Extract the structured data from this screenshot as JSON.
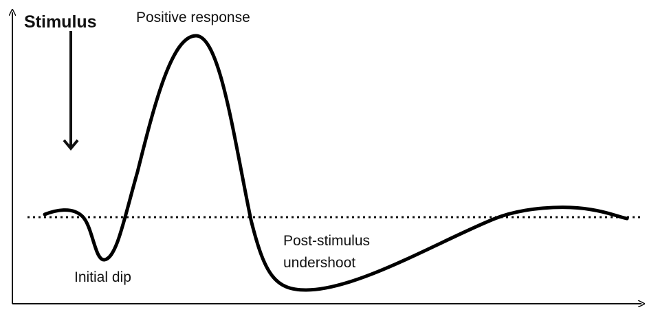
{
  "labels": {
    "stimulus": "Stimulus",
    "positive_response": "Positive response",
    "initial_dip": "Initial dip",
    "undershoot": [
      "Post-stimulus",
      "undershoot"
    ]
  }
}
